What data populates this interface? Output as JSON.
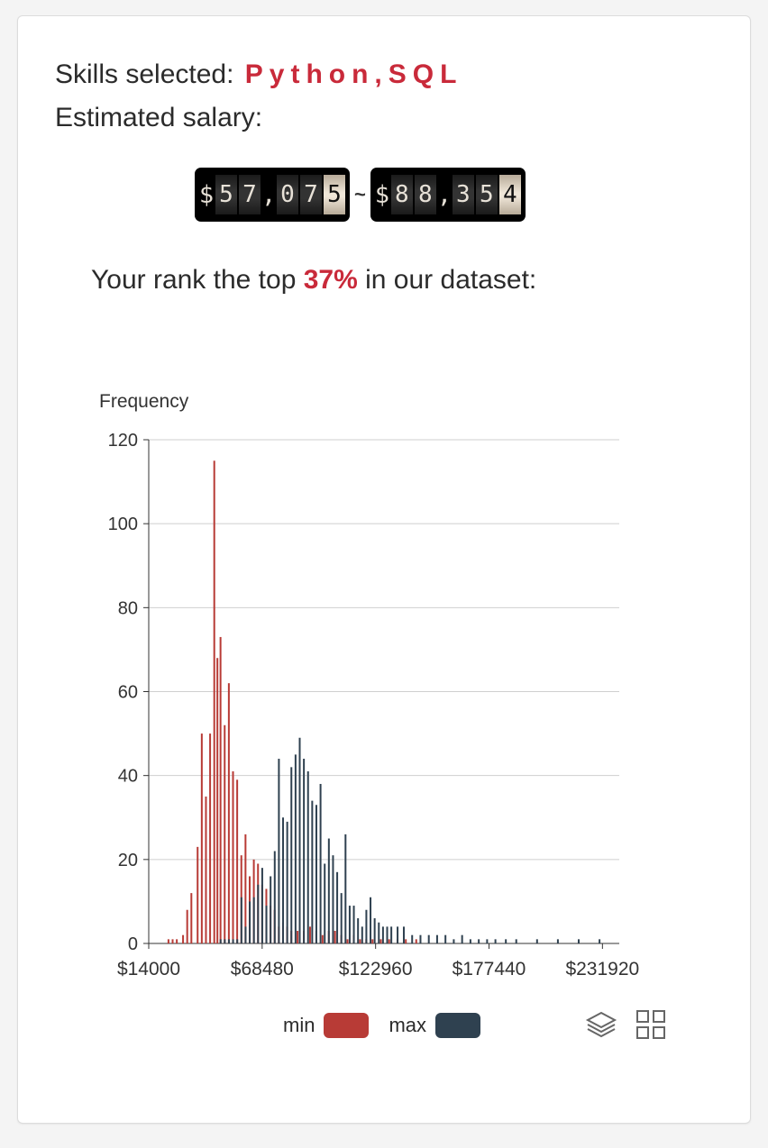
{
  "skills": {
    "label": "Skills selected:",
    "value": "Python,SQL"
  },
  "salary": {
    "label": "Estimated salary:",
    "min": {
      "currency": "$",
      "chars": [
        "5",
        "7",
        ",",
        "0",
        "7",
        "5"
      ]
    },
    "separator": "~",
    "max": {
      "currency": "$",
      "chars": [
        "8",
        "8",
        ",",
        "3",
        "5",
        "4"
      ]
    }
  },
  "rank": {
    "prefix": "Your rank the top",
    "value": "37%",
    "suffix": "in our dataset:"
  },
  "chart_data": {
    "type": "bar",
    "ylabel": "Frequency",
    "ylim": [
      0,
      120
    ],
    "yticks": [
      "0",
      "20",
      "40",
      "60",
      "80",
      "100",
      "120"
    ],
    "xlim": [
      14000,
      240000
    ],
    "xticks": [
      "$14000",
      "$68480",
      "$122960",
      "$177440",
      "$231920"
    ],
    "grid": true,
    "legend_position": "bottom",
    "series": [
      {
        "name": "min",
        "color": "#b83b36",
        "x": [
          24000,
          26000,
          28000,
          31000,
          33000,
          35000,
          38000,
          40000,
          42000,
          44000,
          46000,
          47500,
          49000,
          51000,
          53000,
          55000,
          57000,
          59000,
          61000,
          63000,
          65000,
          67000,
          69000,
          71000,
          73000,
          75000,
          77000,
          79000,
          81000,
          83000,
          86000,
          89000,
          92000,
          95000,
          98000,
          101000,
          104000,
          107000,
          110000,
          113000,
          116000,
          119000,
          122000,
          126000,
          130000,
          134000,
          138000,
          143000
        ],
        "values": [
          1,
          1,
          1,
          2,
          8,
          12,
          23,
          50,
          35,
          50,
          115,
          68,
          73,
          52,
          62,
          41,
          39,
          21,
          26,
          16,
          20,
          19,
          14,
          13,
          9,
          8,
          4,
          5,
          4,
          3,
          3,
          3,
          4,
          3,
          2,
          3,
          3,
          2,
          1,
          2,
          1,
          1,
          1,
          1,
          1,
          1,
          1,
          1
        ]
      },
      {
        "name": "max",
        "color": "#2f4150",
        "x": [
          48000,
          50000,
          52000,
          54000,
          56000,
          58000,
          60000,
          62000,
          64000,
          66000,
          68000,
          70000,
          72000,
          74000,
          76000,
          78000,
          80000,
          82000,
          84000,
          86000,
          88000,
          90000,
          92000,
          94000,
          96000,
          98000,
          100000,
          102000,
          104000,
          106000,
          108000,
          110000,
          112000,
          114000,
          116000,
          118000,
          120000,
          122000,
          124000,
          126000,
          128000,
          130000,
          133000,
          136000,
          140000,
          144000,
          148000,
          152000,
          156000,
          160000,
          164000,
          168000,
          172000,
          176000,
          180000,
          185000,
          190000,
          200000,
          210000,
          220000,
          230000
        ],
        "values": [
          1,
          1,
          1,
          1,
          1,
          11,
          4,
          10,
          11,
          14,
          18,
          9,
          16,
          22,
          44,
          30,
          29,
          42,
          45,
          49,
          44,
          41,
          34,
          33,
          38,
          19,
          25,
          21,
          17,
          12,
          26,
          9,
          9,
          6,
          4,
          8,
          11,
          6,
          5,
          4,
          4,
          4,
          4,
          4,
          2,
          2,
          2,
          2,
          2,
          1,
          2,
          1,
          1,
          1,
          1,
          1,
          1,
          1,
          1,
          1,
          1
        ]
      }
    ]
  },
  "legend": {
    "items": [
      {
        "label": "min",
        "color": "#b83b36"
      },
      {
        "label": "max",
        "color": "#2f4150"
      }
    ]
  },
  "toolbar": {
    "icons": [
      "layers-icon",
      "grid-icon"
    ]
  }
}
